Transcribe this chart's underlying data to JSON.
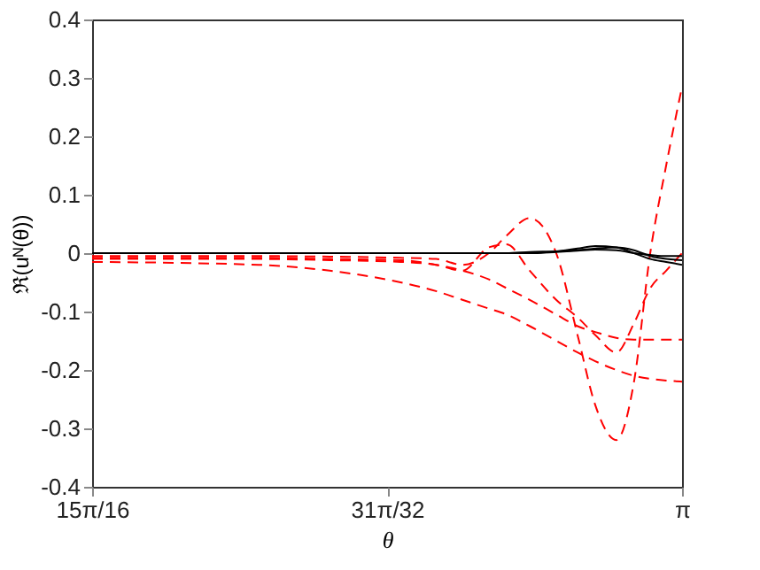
{
  "chart_data": {
    "type": "line",
    "xlabel": "θ",
    "ylabel": "ℜ(uᴺ(θ))",
    "x": [
      2.94524,
      3.0007,
      3.0243,
      3.0479,
      3.0597,
      3.0685,
      3.0773,
      3.0832,
      3.0909,
      3.0997,
      3.1068,
      3.1127,
      3.1197,
      3.1256,
      3.131,
      3.1363,
      3.14159
    ],
    "series": [
      {
        "color": "#ff0000",
        "line_style": "dashed",
        "values": [
          -0.005,
          -0.005,
          -0.006,
          -0.008,
          -0.01,
          -0.02,
          0.0,
          0.03,
          0.06,
          0.0,
          -0.14,
          -0.26,
          -0.32,
          -0.22,
          0.0,
          0.15,
          0.285
        ]
      },
      {
        "color": "#ff0000",
        "line_style": "dashed",
        "values": [
          -0.008,
          -0.008,
          -0.01,
          -0.012,
          -0.02,
          -0.03,
          0.01,
          0.015,
          -0.03,
          -0.08,
          -0.11,
          -0.14,
          -0.17,
          -0.12,
          -0.06,
          -0.03,
          0.0
        ]
      },
      {
        "color": "#ff0000",
        "line_style": "dashed",
        "values": [
          -0.01,
          -0.01,
          -0.012,
          -0.015,
          -0.02,
          -0.03,
          -0.045,
          -0.06,
          -0.08,
          -0.105,
          -0.125,
          -0.135,
          -0.145,
          -0.148,
          -0.148,
          -0.148,
          -0.148
        ]
      },
      {
        "color": "#ff0000",
        "line_style": "dashed",
        "values": [
          -0.015,
          -0.02,
          -0.03,
          -0.05,
          -0.065,
          -0.08,
          -0.095,
          -0.105,
          -0.125,
          -0.15,
          -0.17,
          -0.185,
          -0.2,
          -0.21,
          -0.215,
          -0.218,
          -0.22
        ]
      },
      {
        "color": "#000000",
        "line_style": "solid",
        "values": [
          0,
          0,
          0,
          0,
          0,
          0,
          0,
          0,
          0.002,
          0.003,
          0.005,
          0.008,
          0.01,
          0.005,
          -0.005,
          -0.01,
          -0.012
        ]
      },
      {
        "color": "#000000",
        "line_style": "solid",
        "values": [
          0,
          0,
          0,
          0,
          0,
          0,
          0,
          0,
          0,
          0.003,
          0.008,
          0.012,
          0.01,
          0,
          -0.01,
          -0.015,
          -0.02
        ]
      },
      {
        "color": "#000000",
        "line_style": "solid",
        "values": [
          0,
          0,
          0,
          0,
          0,
          0,
          0,
          0,
          0,
          0.002,
          0.004,
          0.006,
          0.005,
          0.0,
          -0.003,
          -0.005,
          -0.005
        ]
      }
    ],
    "xlim": [
      2.94524,
      3.14159
    ],
    "xticks": [
      {
        "value": 2.94524,
        "label": "15π/16"
      },
      {
        "value": 3.04342,
        "label": "31π/32"
      },
      {
        "value": 3.14159,
        "label": "π"
      }
    ],
    "ylim": [
      -0.4,
      0.4
    ],
    "yticks": [
      -0.4,
      -0.3,
      -0.2,
      -0.1,
      0,
      0.1,
      0.2,
      0.3,
      0.4
    ],
    "grid": false,
    "legend": false
  }
}
